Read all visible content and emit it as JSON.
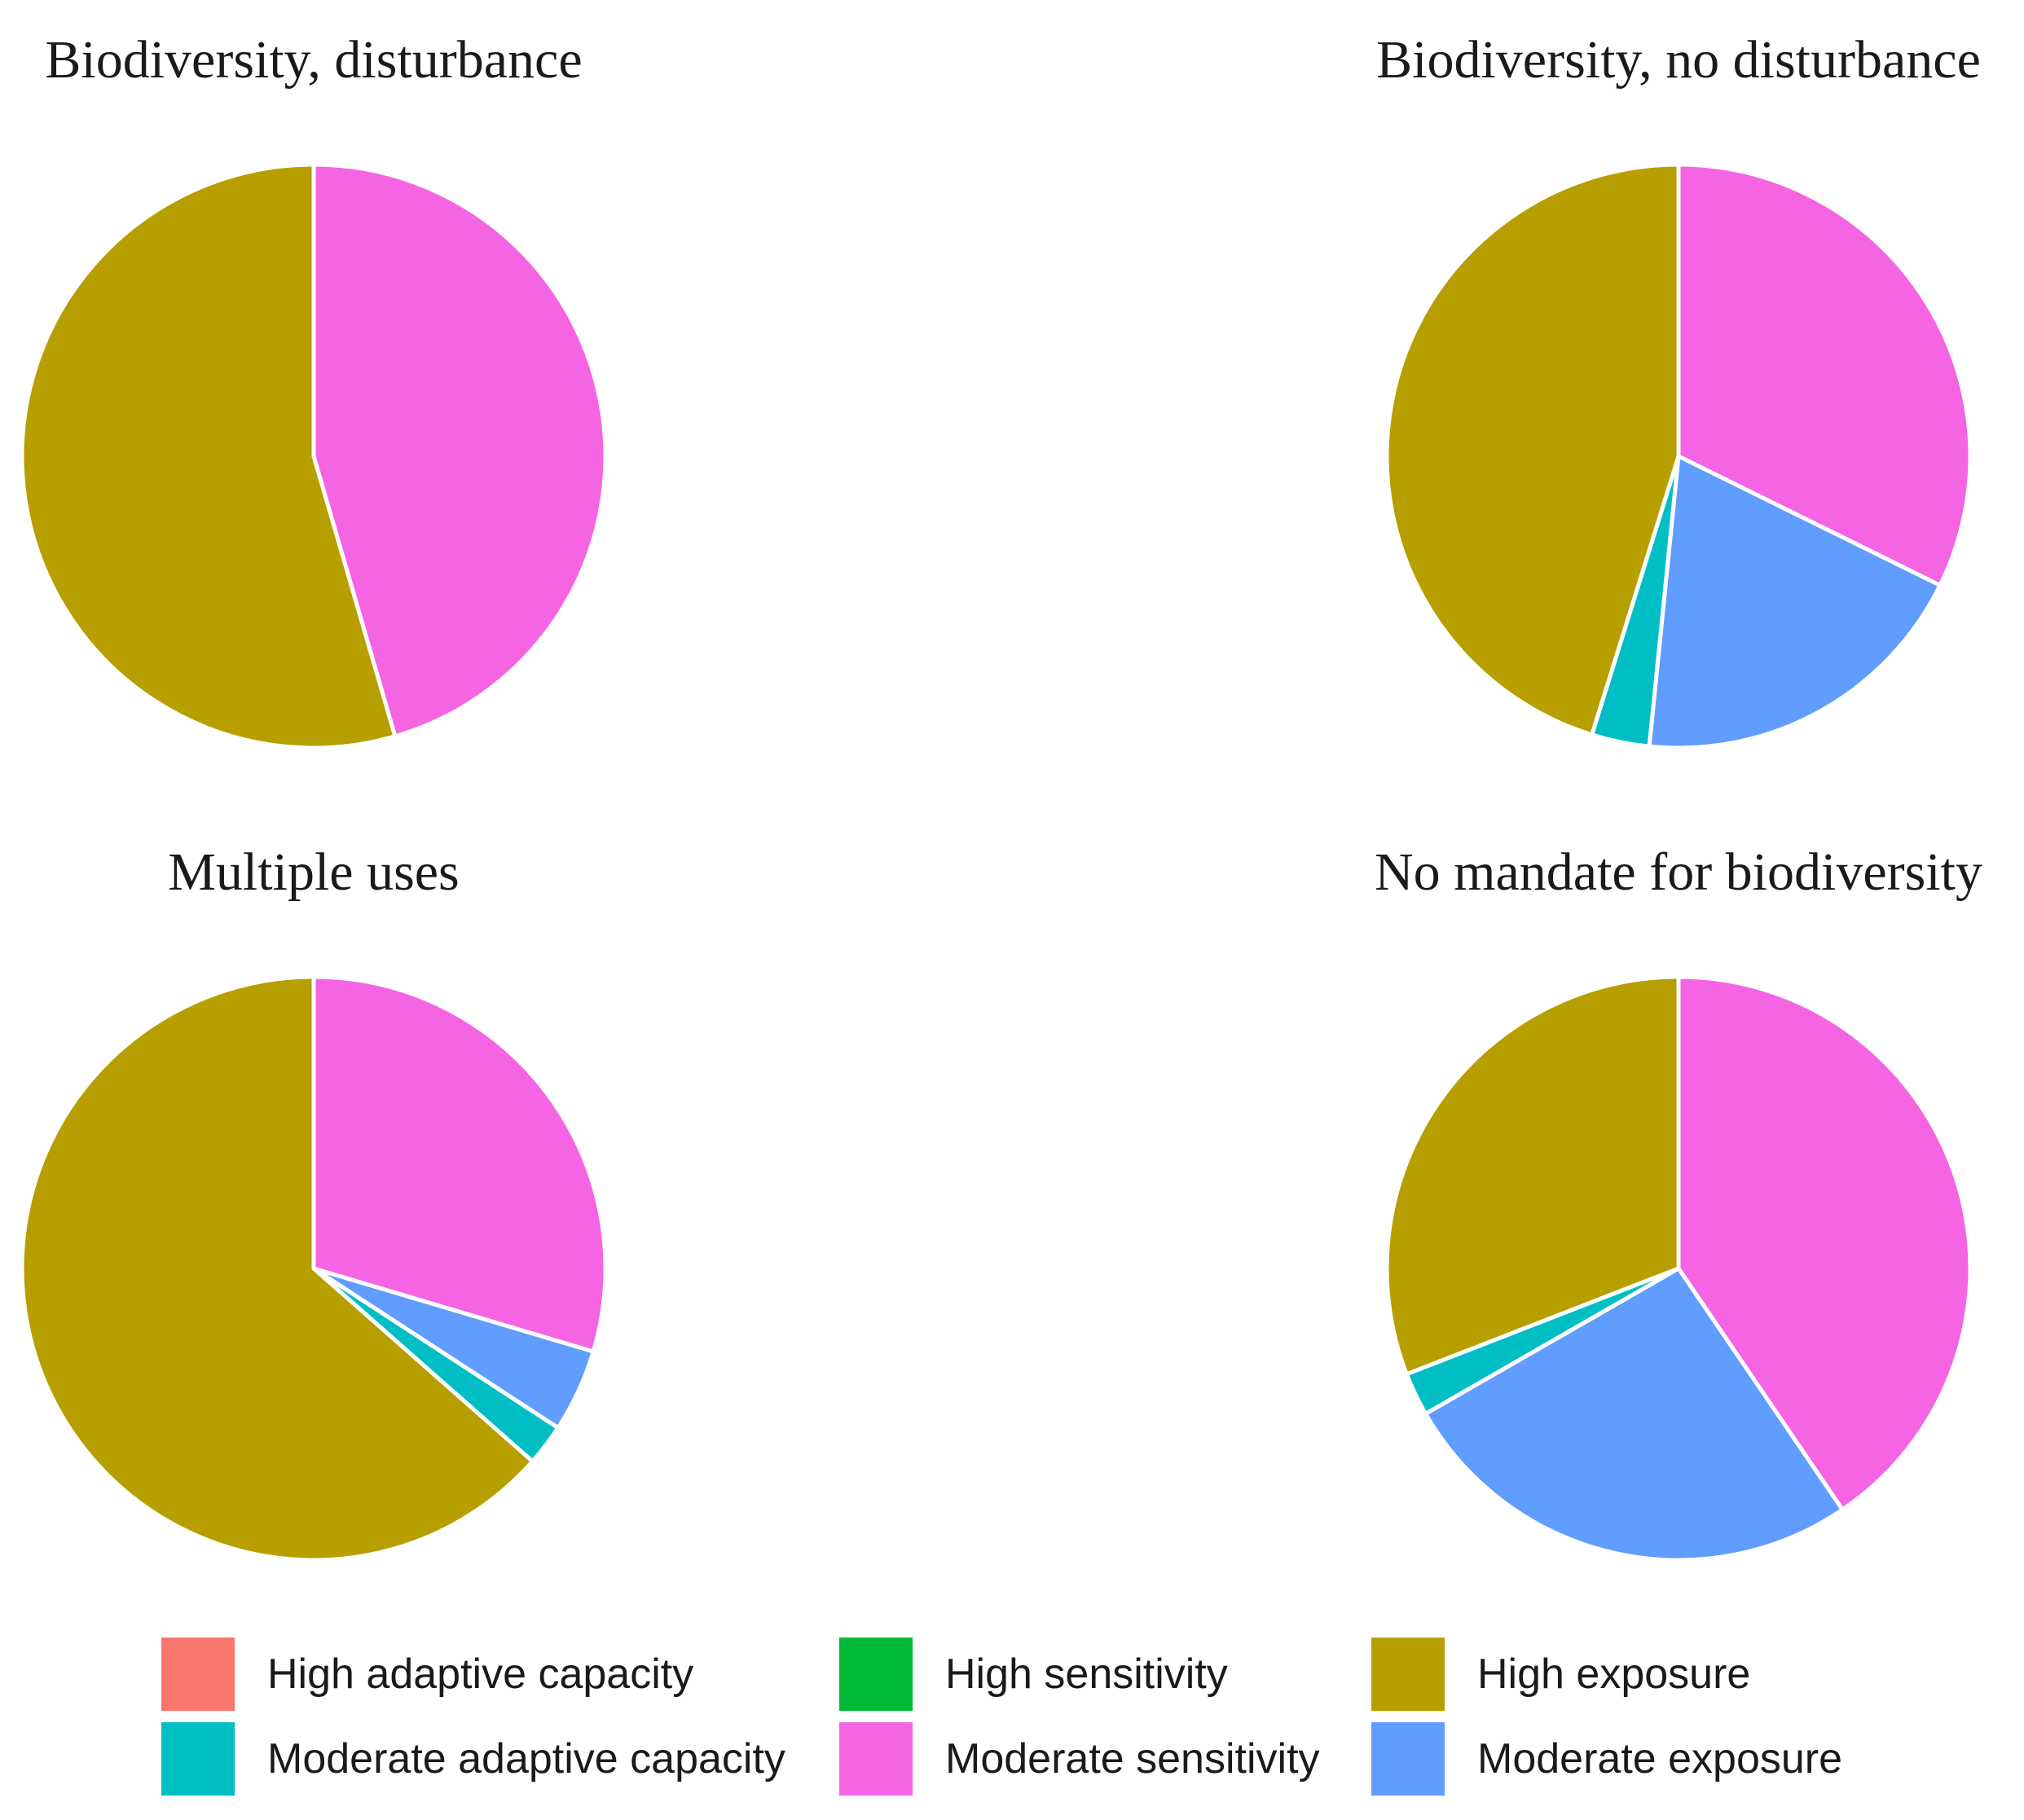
{
  "chart_data": {
    "type": "pie",
    "categories": [
      "High adaptive capacity",
      "Moderate adaptive capacity",
      "High sensitivity",
      "Moderate sensitivity",
      "High exposure",
      "Moderate exposure"
    ],
    "colors": {
      "High adaptive capacity": "#F8766D",
      "Moderate adaptive capacity": "#00BFC4",
      "High sensitivity": "#00BA38",
      "Moderate sensitivity": "#F564E3",
      "High exposure": "#B79F00",
      "Moderate exposure": "#619CFF"
    },
    "panels": [
      {
        "title": "Biodiversity, disturbance",
        "slices": [
          {
            "label": "Moderate sensitivity",
            "value": 45.5
          },
          {
            "label": "High exposure",
            "value": 54.5
          }
        ]
      },
      {
        "title": "Biodiversity, no disturbance",
        "slices": [
          {
            "label": "Moderate sensitivity",
            "value": 32.3
          },
          {
            "label": "Moderate exposure",
            "value": 19.3
          },
          {
            "label": "Moderate adaptive capacity",
            "value": 3.2
          },
          {
            "label": "High exposure",
            "value": 45.2
          }
        ]
      },
      {
        "title": "Multiple uses",
        "slices": [
          {
            "label": "Moderate sensitivity",
            "value": 29.6
          },
          {
            "label": "Moderate exposure",
            "value": 4.6
          },
          {
            "label": "Moderate adaptive capacity",
            "value": 2.3
          },
          {
            "label": "High exposure",
            "value": 63.5
          }
        ]
      },
      {
        "title": "No mandate for biodiversity",
        "slices": [
          {
            "label": "Moderate sensitivity",
            "value": 40.5
          },
          {
            "label": "Moderate exposure",
            "value": 26.2
          },
          {
            "label": "Moderate adaptive capacity",
            "value": 2.4
          },
          {
            "label": "High exposure",
            "value": 30.9
          }
        ]
      }
    ],
    "legend": {
      "position": "bottom",
      "items": [
        "High adaptive capacity",
        "High sensitivity",
        "High exposure",
        "Moderate adaptive capacity",
        "Moderate sensitivity",
        "Moderate exposure"
      ]
    }
  }
}
